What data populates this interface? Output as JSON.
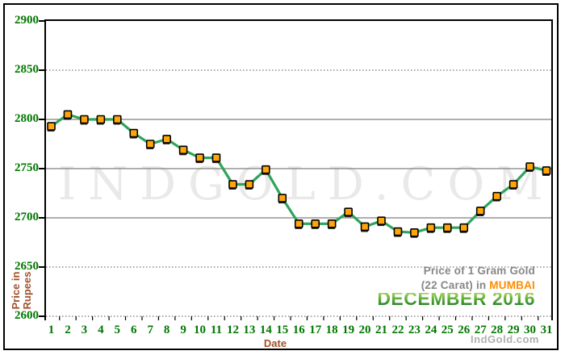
{
  "page": {
    "background": "#ffffff",
    "frame_color": "#000000"
  },
  "watermark": {
    "text": "INDGOLD.COM",
    "color": "#e9e9e9"
  },
  "y_axis": {
    "title_line1": "Price in",
    "title_line2": "Rupees",
    "title_color": "#a0522d",
    "tick_label_color": "#007700"
  },
  "x_axis": {
    "title": "Date",
    "title_color": "#a0522d",
    "tick_label_color": "#007700"
  },
  "annotation": {
    "line1": "Price of 1 Gram Gold",
    "line2_prefix": "(22 Carat) in ",
    "line2_city": "MUMBAI",
    "line3": "DECEMBER 2016",
    "gray_color": "#878787",
    "city_color": "#ff8c00",
    "month_color": "#3f9433"
  },
  "brand": {
    "text": "IndGold.com",
    "color": "#b0b0b0"
  },
  "chart_data": {
    "type": "line",
    "title": "Price of 1 Gram Gold (22 Carat) in MUMBAI - DECEMBER 2016",
    "xlabel": "Date",
    "ylabel": "Price in Rupees",
    "x": [
      1,
      2,
      3,
      4,
      5,
      6,
      7,
      8,
      9,
      10,
      11,
      12,
      13,
      14,
      15,
      16,
      17,
      18,
      19,
      20,
      21,
      22,
      23,
      24,
      25,
      26,
      27,
      28,
      29,
      30,
      31
    ],
    "values": [
      2793,
      2805,
      2800,
      2800,
      2800,
      2786,
      2775,
      2780,
      2769,
      2761,
      2761,
      2734,
      2734,
      2749,
      2720,
      2694,
      2694,
      2694,
      2706,
      2691,
      2697,
      2686,
      2685,
      2690,
      2690,
      2690,
      2707,
      2722,
      2734,
      2752,
      2748
    ],
    "ylim": [
      2600,
      2900
    ],
    "y_ticks": [
      2900,
      2850,
      2800,
      2750,
      2700,
      2650,
      2600
    ],
    "y_gridlines_solid": [
      2800,
      2750,
      2700
    ],
    "y_gridlines_dotted": [
      2850,
      2650,
      2600
    ],
    "grid": true,
    "legend_position": "none",
    "line_color": "#2fa45c",
    "marker_color": "#ffa60a",
    "marker_border_color": "#000000",
    "gridline_solid_color": "#7f7f7f",
    "gridline_dotted_color": "#555555"
  }
}
